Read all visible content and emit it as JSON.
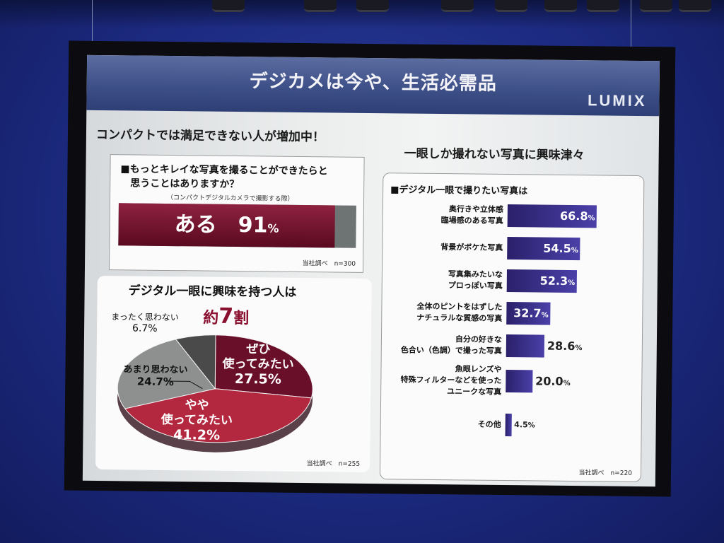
{
  "slide": {
    "title": "デジカメは今や、生活必需品",
    "brand": "LUMIX"
  },
  "left": {
    "heading": "コンパクトでは満足できない人が増加中！",
    "survey": {
      "question_line1": "■もっとキレイな写真を撮ることができたらと",
      "question_line2": "思うことはありますか？",
      "note": "（コンパクトデジタルカメラで撮影する際）",
      "source": "当社調べ　n=300"
    },
    "pie": {
      "title": "デジタル一眼に興味を持つ人は",
      "headline_prefix": "約",
      "headline_num": "7",
      "headline_suffix": "割",
      "source": "当社調べ　n=255"
    }
  },
  "right": {
    "heading": "一眼しか撮れない写真に興味津々",
    "panel_title": "■デジタル一眼で撮りたい写真は",
    "source": "当社調べ　n=220"
  },
  "chart_data": [
    {
      "type": "bar",
      "orientation": "horizontal",
      "categories": [
        "ある"
      ],
      "values": [
        91
      ],
      "unit": "%",
      "xlim": [
        0,
        100
      ]
    },
    {
      "type": "pie",
      "categories": [
        "ぜひ使ってみたい",
        "やや使ってみたい",
        "あまり思わない",
        "まったく思わない"
      ],
      "values": [
        27.5,
        41.2,
        24.7,
        6.7
      ],
      "unit": "%",
      "colors": [
        "#6a0f2a",
        "#b3283f",
        "#8e9090",
        "#4a4a4a"
      ]
    },
    {
      "type": "bar",
      "orientation": "horizontal",
      "categories": [
        [
          "奥行きや立体感",
          "臨場感のある写真"
        ],
        [
          "背景がボケた写真"
        ],
        [
          "写真集みたいな",
          "プロっぽい写真"
        ],
        [
          "全体のピントをはずした",
          "ナチュラルな質感の写真"
        ],
        [
          "自分の好きな",
          "色合い（色調）で撮った写真"
        ],
        [
          "魚眼レンズや",
          "特殊フィルターなどを使った",
          "ユニークな写真"
        ],
        [
          "その他"
        ]
      ],
      "values": [
        66.8,
        54.5,
        52.3,
        32.7,
        28.6,
        20.0,
        4.5
      ],
      "value_labels": [
        "66.8",
        "54.5",
        "52.3",
        "32.7",
        "28.6",
        "20.0",
        "4.5"
      ],
      "unit": "%",
      "xlim": [
        0,
        100
      ]
    }
  ]
}
